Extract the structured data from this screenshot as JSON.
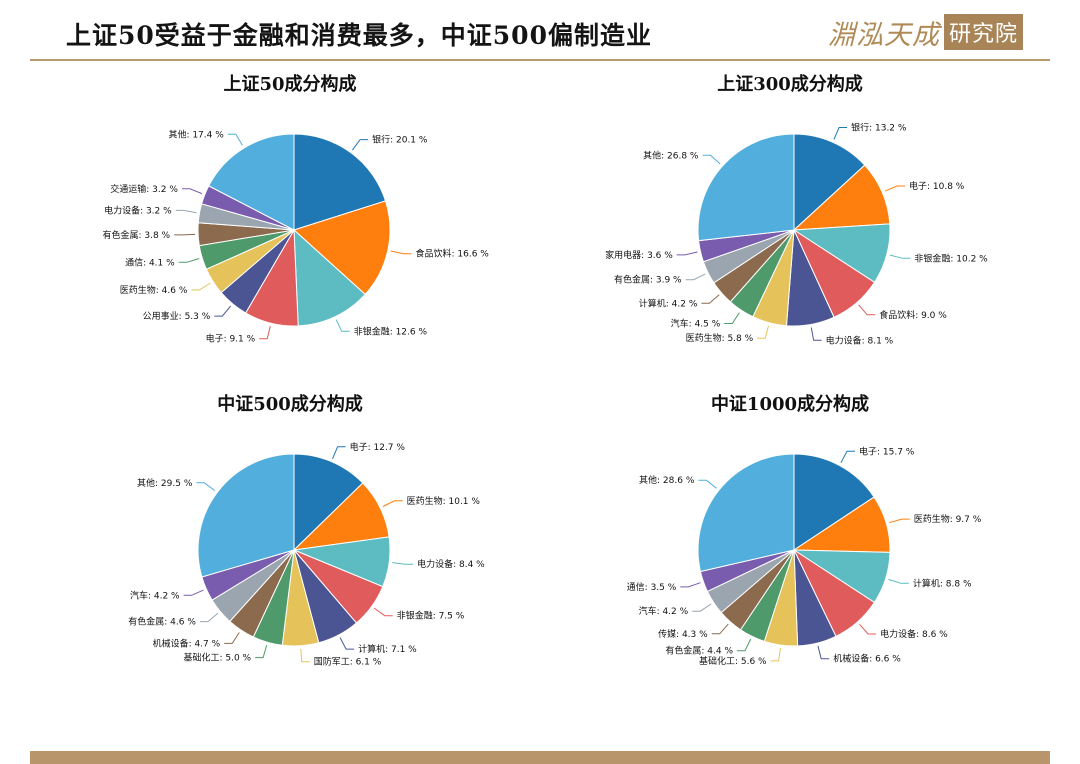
{
  "header": {
    "title": "上证50受益于金融和消费最多，中证500偏制造业",
    "logo_text": "淵泓天成",
    "logo_box_text": "研究院"
  },
  "colors": [
    "#1f77b4",
    "#ff7f0e",
    "#5cbcc2",
    "#e05c5c",
    "#4c5594",
    "#e5c35a",
    "#4e9a6b",
    "#8b6a4e",
    "#9aa5b0",
    "#7a5cae",
    "#52aedc"
  ],
  "chart_data": [
    {
      "type": "pie",
      "title": "上证50成分构成",
      "unit": "%",
      "slices": [
        {
          "label": "银行",
          "value": 20.1
        },
        {
          "label": "食品饮料",
          "value": 16.6
        },
        {
          "label": "非银金融",
          "value": 12.6
        },
        {
          "label": "电子",
          "value": 9.1
        },
        {
          "label": "公用事业",
          "value": 5.3
        },
        {
          "label": "医药生物",
          "value": 4.6
        },
        {
          "label": "通信",
          "value": 4.1
        },
        {
          "label": "有色金属",
          "value": 3.8
        },
        {
          "label": "电力设备",
          "value": 3.2
        },
        {
          "label": "交通运输",
          "value": 3.2
        },
        {
          "label": "其他",
          "value": 17.4
        }
      ]
    },
    {
      "type": "pie",
      "title": "上证300成分构成",
      "unit": "%",
      "slices": [
        {
          "label": "银行",
          "value": 13.2
        },
        {
          "label": "电子",
          "value": 10.8
        },
        {
          "label": "非银金融",
          "value": 10.2
        },
        {
          "label": "食品饮料",
          "value": 9.0
        },
        {
          "label": "电力设备",
          "value": 8.1
        },
        {
          "label": "医药生物",
          "value": 5.8
        },
        {
          "label": "汽车",
          "value": 4.5
        },
        {
          "label": "计算机",
          "value": 4.2
        },
        {
          "label": "有色金属",
          "value": 3.9
        },
        {
          "label": "家用电器",
          "value": 3.6
        },
        {
          "label": "其他",
          "value": 26.8
        }
      ]
    },
    {
      "type": "pie",
      "title": "中证500成分构成",
      "unit": "%",
      "slices": [
        {
          "label": "电子",
          "value": 12.7
        },
        {
          "label": "医药生物",
          "value": 10.1
        },
        {
          "label": "电力设备",
          "value": 8.4
        },
        {
          "label": "非银金融",
          "value": 7.5
        },
        {
          "label": "计算机",
          "value": 7.1
        },
        {
          "label": "国防军工",
          "value": 6.1
        },
        {
          "label": "基础化工",
          "value": 5.0
        },
        {
          "label": "机械设备",
          "value": 4.7
        },
        {
          "label": "有色金属",
          "value": 4.6
        },
        {
          "label": "汽车",
          "value": 4.2
        },
        {
          "label": "其他",
          "value": 29.5
        }
      ]
    },
    {
      "type": "pie",
      "title": "中证1000成分构成",
      "unit": "%",
      "slices": [
        {
          "label": "电子",
          "value": 15.7
        },
        {
          "label": "医药生物",
          "value": 9.7
        },
        {
          "label": "计算机",
          "value": 8.8
        },
        {
          "label": "电力设备",
          "value": 8.6
        },
        {
          "label": "机械设备",
          "value": 6.6
        },
        {
          "label": "基础化工",
          "value": 5.6
        },
        {
          "label": "有色金属",
          "value": 4.4
        },
        {
          "label": "传媒",
          "value": 4.3
        },
        {
          "label": "汽车",
          "value": 4.2
        },
        {
          "label": "通信",
          "value": 3.5
        },
        {
          "label": "其他",
          "value": 28.6
        }
      ]
    }
  ]
}
